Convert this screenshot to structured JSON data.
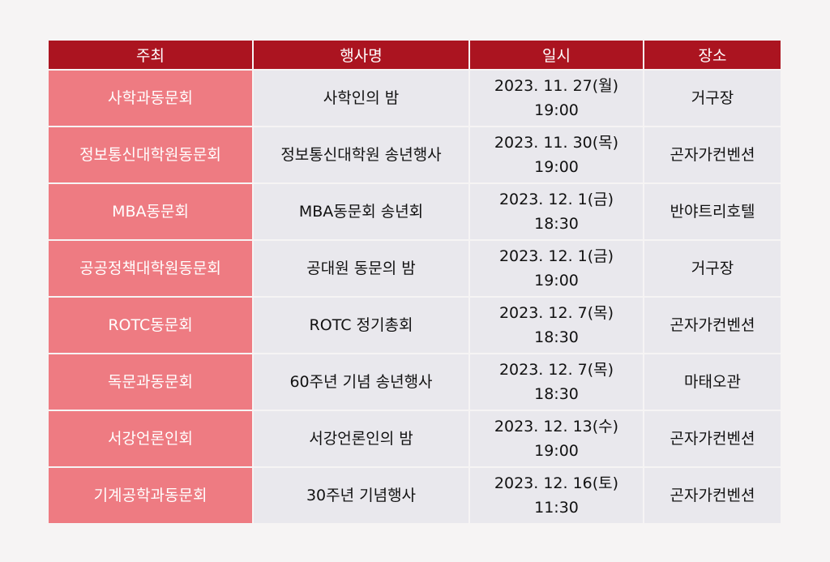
{
  "headers": [
    "주최",
    "행사명",
    "일시",
    "장소"
  ],
  "rows": [
    {
      "host": "사학과동문회",
      "event": "사학인의 밤",
      "date": "2023. 11. 27(월)",
      "time": "19:00",
      "place": "거구장"
    },
    {
      "host": "정보통신대학원동문회",
      "event": "정보통신대학원 송년행사",
      "date": "2023. 11. 30(목)",
      "time": "19:00",
      "place": "곤자가컨벤션"
    },
    {
      "host": "MBA동문회",
      "event": "MBA동문회 송년회",
      "date": "2023. 12. 1(금)",
      "time": "18:30",
      "place": "반야트리호텔"
    },
    {
      "host": "공공정책대학원동문회",
      "event": "공대원 동문의 밤",
      "date": "2023. 12. 1(금)",
      "time": "19:00",
      "place": "거구장"
    },
    {
      "host": "ROTC동문회",
      "event": "ROTC 정기총회",
      "date": "2023. 12. 7(목)",
      "time": "18:30",
      "place": "곤자가컨벤션"
    },
    {
      "host": "독문과동문회",
      "event": "60주년 기념 송년행사",
      "date": "2023. 12. 7(목)",
      "time": "18:30",
      "place": "마태오관"
    },
    {
      "host": "서강언론인회",
      "event": "서강언론인의 밤",
      "date": "2023. 12. 13(수)",
      "time": "19:00",
      "place": "곤자가컨벤션"
    },
    {
      "host": "기계공학과동문회",
      "event": "30주년 기념행사",
      "date": "2023. 12. 16(토)",
      "time": "11:30",
      "place": "곤자가컨벤션"
    }
  ],
  "colors": {
    "header": "#ab1420",
    "host_cell": "#ee7b82",
    "cell": "#e9e8ed",
    "background": "#f6f4f4"
  }
}
